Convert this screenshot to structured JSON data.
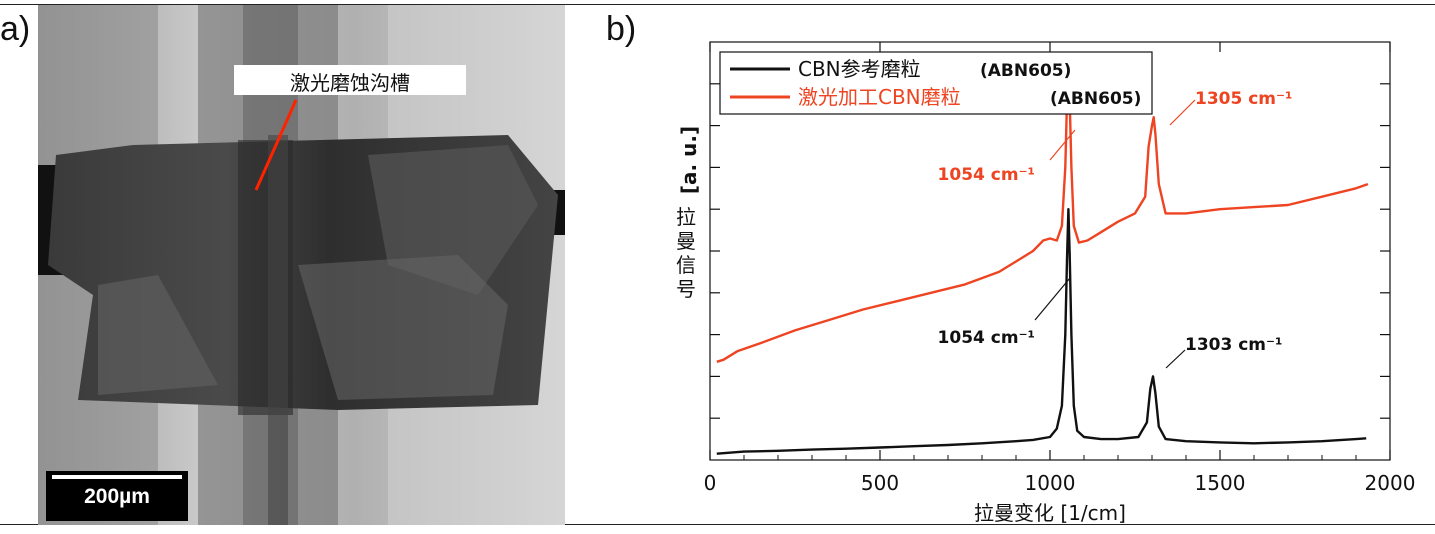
{
  "panel_a": {
    "label": "a)",
    "annotation": "激光磨蚀沟槽",
    "scale_bar": "200µm"
  },
  "panel_b": {
    "label": "b)"
  },
  "chart_data": {
    "type": "line",
    "xlabel": "拉曼变化 [1/cm]",
    "ylabel_unit": "[a. u.]",
    "ylabel_text": "拉曼信号",
    "xlim": [
      0,
      2000
    ],
    "ylim": [
      0,
      10
    ],
    "xticks": [
      "0",
      "500",
      "1000",
      "1500",
      "2000"
    ],
    "yticks_shown_labels": false,
    "legend_position": "top-left",
    "grid": false,
    "series": [
      {
        "name": "CBN参考磨粒",
        "legend_suffix": "(ABN605)",
        "color": "#111111",
        "points": [
          [
            20,
            0.15
          ],
          [
            100,
            0.2
          ],
          [
            200,
            0.22
          ],
          [
            300,
            0.25
          ],
          [
            400,
            0.27
          ],
          [
            500,
            0.3
          ],
          [
            600,
            0.33
          ],
          [
            700,
            0.36
          ],
          [
            800,
            0.4
          ],
          [
            900,
            0.45
          ],
          [
            950,
            0.48
          ],
          [
            1000,
            0.55
          ],
          [
            1020,
            0.75
          ],
          [
            1035,
            1.3
          ],
          [
            1045,
            3.0
          ],
          [
            1050,
            4.8
          ],
          [
            1054,
            6.0
          ],
          [
            1058,
            4.9
          ],
          [
            1063,
            3.0
          ],
          [
            1070,
            1.3
          ],
          [
            1080,
            0.7
          ],
          [
            1100,
            0.55
          ],
          [
            1150,
            0.5
          ],
          [
            1200,
            0.5
          ],
          [
            1260,
            0.55
          ],
          [
            1285,
            0.9
          ],
          [
            1295,
            1.7
          ],
          [
            1303,
            2.0
          ],
          [
            1310,
            1.6
          ],
          [
            1320,
            0.8
          ],
          [
            1340,
            0.5
          ],
          [
            1400,
            0.45
          ],
          [
            1500,
            0.42
          ],
          [
            1600,
            0.4
          ],
          [
            1700,
            0.42
          ],
          [
            1800,
            0.45
          ],
          [
            1900,
            0.5
          ],
          [
            1930,
            0.52
          ]
        ]
      },
      {
        "name": "激光加工CBN磨粒",
        "legend_suffix": "(ABN605)",
        "color": "#ee4422",
        "points": [
          [
            20,
            2.35
          ],
          [
            40,
            2.4
          ],
          [
            80,
            2.6
          ],
          [
            150,
            2.8
          ],
          [
            250,
            3.1
          ],
          [
            350,
            3.35
          ],
          [
            450,
            3.6
          ],
          [
            550,
            3.8
          ],
          [
            650,
            4.0
          ],
          [
            750,
            4.2
          ],
          [
            850,
            4.5
          ],
          [
            900,
            4.75
          ],
          [
            950,
            5.0
          ],
          [
            980,
            5.25
          ],
          [
            1000,
            5.3
          ],
          [
            1020,
            5.25
          ],
          [
            1035,
            5.6
          ],
          [
            1045,
            7.0
          ],
          [
            1050,
            8.6
          ],
          [
            1054,
            9.0
          ],
          [
            1058,
            8.6
          ],
          [
            1063,
            7.0
          ],
          [
            1070,
            5.6
          ],
          [
            1085,
            5.2
          ],
          [
            1110,
            5.25
          ],
          [
            1150,
            5.45
          ],
          [
            1200,
            5.7
          ],
          [
            1250,
            5.9
          ],
          [
            1280,
            6.3
          ],
          [
            1290,
            7.5
          ],
          [
            1300,
            8.0
          ],
          [
            1305,
            8.2
          ],
          [
            1310,
            7.8
          ],
          [
            1320,
            6.6
          ],
          [
            1340,
            5.9
          ],
          [
            1400,
            5.9
          ],
          [
            1500,
            6.0
          ],
          [
            1600,
            6.05
          ],
          [
            1700,
            6.1
          ],
          [
            1800,
            6.3
          ],
          [
            1900,
            6.5
          ],
          [
            1935,
            6.6
          ]
        ]
      }
    ],
    "annotations": [
      {
        "text": "1054 cm⁻¹",
        "color": "#ee4422"
      },
      {
        "text": "1305 cm⁻¹",
        "color": "#ee4422"
      },
      {
        "text": "1054 cm⁻¹",
        "color": "#111111"
      },
      {
        "text": "1303 cm⁻¹",
        "color": "#111111"
      }
    ]
  }
}
